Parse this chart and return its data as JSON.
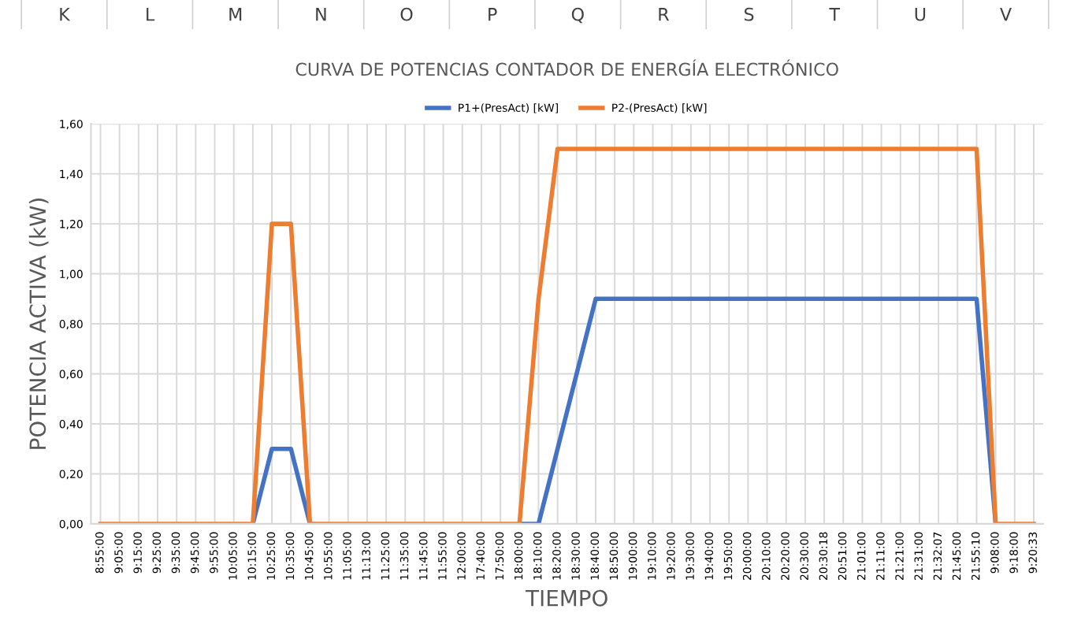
{
  "chart_data": {
    "type": "line",
    "title": "CURVA DE POTENCIAS CONTADOR DE ENERGÍA ELECTRÓNICO",
    "xlabel": "TIEMPO",
    "ylabel": "POTENCIA ACTIVA (kW)",
    "annotations": [
      "K",
      "L",
      "M",
      "N",
      "O",
      "P",
      "Q",
      "R",
      "S",
      "T",
      "U",
      "V"
    ],
    "categories": [
      "8:55:00",
      "9:05:00",
      "9:15:00",
      "9:25:00",
      "9:35:00",
      "9:45:00",
      "9:55:00",
      "10:05:00",
      "10:15:00",
      "10:25:00",
      "10:35:00",
      "10:45:00",
      "10:55:00",
      "11:05:00",
      "11:13:00",
      "11:25:00",
      "11:35:00",
      "11:45:00",
      "11:55:00",
      "12:00:00",
      "17:40:00",
      "17:50:00",
      "18:00:00",
      "18:10:00",
      "18:20:00",
      "18:30:00",
      "18:40:00",
      "18:50:00",
      "19:00:00",
      "19:10:00",
      "19:20:00",
      "19:30:00",
      "19:40:00",
      "19:50:00",
      "20:00:00",
      "20:10:00",
      "20:20:00",
      "20:30:00",
      "20:30:18",
      "20:51:00",
      "21:01:00",
      "21:11:00",
      "21:21:00",
      "21:31:00",
      "21:32:07",
      "21:45:00",
      "21:55:10",
      "9:08:00",
      "9:18:00",
      "9:20:33"
    ],
    "series": [
      {
        "name": "P1+(PresAct) [kW]",
        "color": "#4472c4",
        "values": [
          null,
          null,
          null,
          null,
          null,
          null,
          null,
          null,
          0,
          0.3,
          0.3,
          0,
          null,
          null,
          null,
          null,
          null,
          null,
          null,
          null,
          null,
          null,
          0,
          0,
          0.3,
          0.6,
          0.9,
          0.9,
          0.9,
          0.9,
          0.9,
          0.9,
          0.9,
          0.9,
          0.9,
          0.9,
          0.9,
          0.9,
          0.9,
          0.9,
          0.9,
          0.9,
          0.9,
          0.9,
          0.9,
          0.9,
          0.9,
          0,
          null,
          null
        ]
      },
      {
        "name": "P2-(PresAct) [kW]",
        "color": "#ed7d31",
        "values": [
          0,
          0,
          0,
          0,
          0,
          0,
          0,
          0,
          0,
          1.2,
          1.2,
          0,
          0,
          0,
          0,
          0,
          0,
          0,
          0,
          0,
          0,
          0,
          0,
          0.9,
          1.5,
          1.5,
          1.5,
          1.5,
          1.5,
          1.5,
          1.5,
          1.5,
          1.5,
          1.5,
          1.5,
          1.5,
          1.5,
          1.5,
          1.5,
          1.5,
          1.5,
          1.5,
          1.5,
          1.5,
          1.5,
          1.5,
          1.5,
          0,
          0,
          0
        ]
      }
    ],
    "ylim": [
      0,
      1.6
    ],
    "yticks": [
      {
        "value": 0,
        "label": "0,00"
      },
      {
        "value": 0.2,
        "label": "0,20"
      },
      {
        "value": 0.4,
        "label": "0,40"
      },
      {
        "value": 0.6,
        "label": "0,60"
      },
      {
        "value": 0.8,
        "label": "0,80"
      },
      {
        "value": 1.0,
        "label": "1,00"
      },
      {
        "value": 1.2,
        "label": "1,20"
      },
      {
        "value": 1.4,
        "label": "1,40"
      },
      {
        "value": 1.6,
        "label": "1,60"
      }
    ],
    "grid": true,
    "legend": "top",
    "marker": "none",
    "line_style": "solid"
  }
}
